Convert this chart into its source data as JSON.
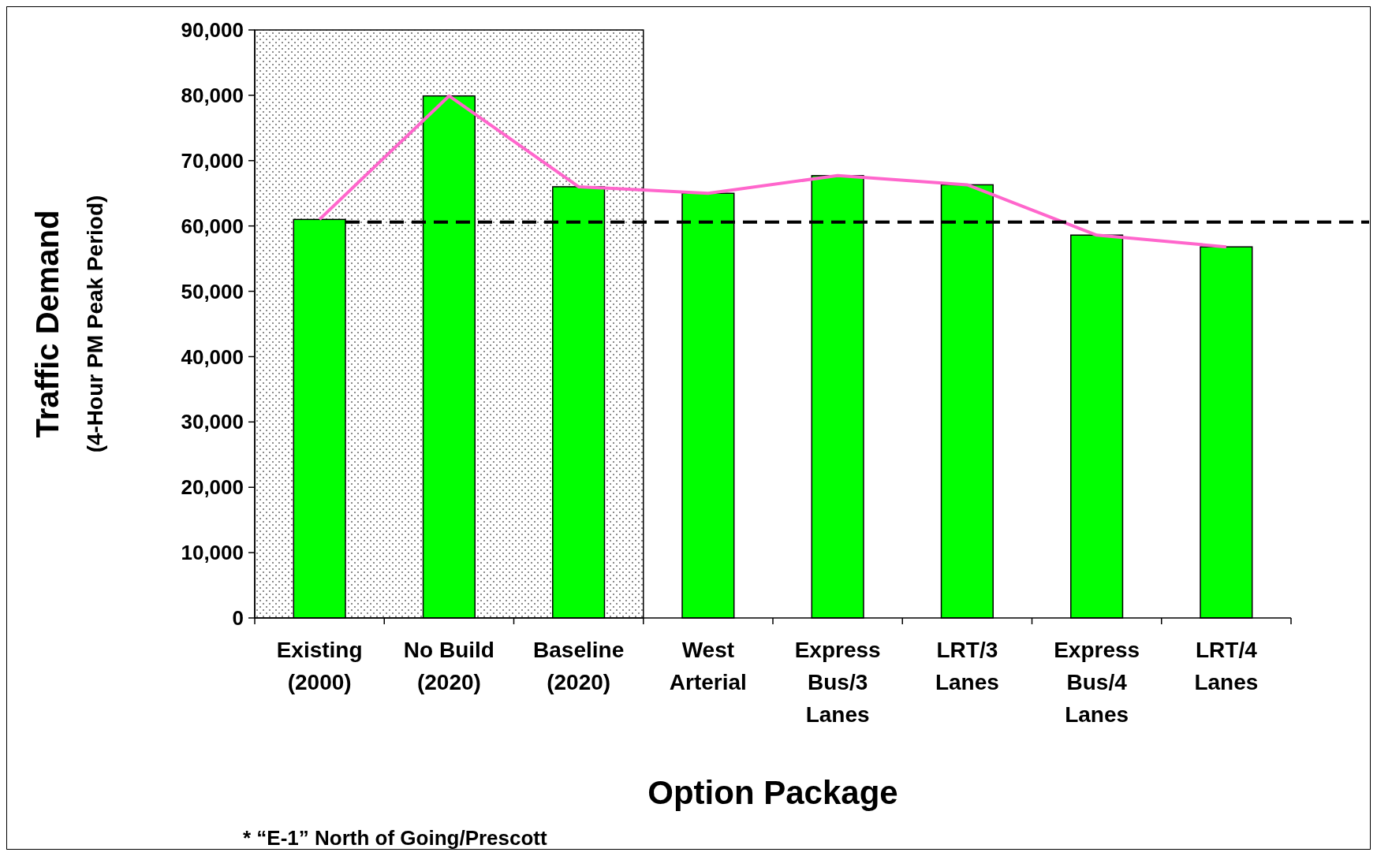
{
  "chart_data": {
    "type": "bar",
    "xlabel": "Option Package",
    "ylabel": "Traffic Demand\n(4-Hour PM Peak Period)",
    "categories": [
      "Existing\n(2000)",
      "No Build\n(2020)",
      "Baseline\n(2020)",
      "West\nArterial",
      "Express\nBus/3\nLanes",
      "LRT/3\nLanes",
      "Express\nBus/4\nLanes",
      "LRT/4\nLanes"
    ],
    "series": [
      {
        "color": "#00ff00",
        "values": [
          61000,
          79900,
          66000,
          65000,
          67700,
          66300,
          58600,
          56800
        ]
      },
      {
        "type": "line",
        "color": "#ff66cc",
        "values": [
          61000,
          79900,
          66000,
          65000,
          67700,
          66300,
          58600,
          56800
        ]
      }
    ],
    "ylim": [
      0,
      90000
    ],
    "yticks": [
      {
        "value": 0,
        "label": "0"
      },
      {
        "value": 10000,
        "label": "10,000"
      },
      {
        "value": 20000,
        "label": "20,000"
      },
      {
        "value": 30000,
        "label": "30,000"
      },
      {
        "value": 40000,
        "label": "40,000"
      },
      {
        "value": 50000,
        "label": "50,000"
      },
      {
        "value": 60000,
        "label": "60,000"
      },
      {
        "value": 70000,
        "label": "70,000"
      },
      {
        "value": 80000,
        "label": "80,000"
      },
      {
        "value": 90000,
        "label": "90,000"
      }
    ],
    "ref_lines": [
      {
        "axis": "y",
        "value": 60600,
        "color": "#000000",
        "line_style": "dashed"
      }
    ],
    "bands": [
      {
        "axis": "x",
        "from": "Existing\n(2000)",
        "to": "Baseline\n(2020)"
      }
    ],
    "grid": false,
    "annotations": [
      "* “E-1” North of Going/Prescott"
    ]
  }
}
